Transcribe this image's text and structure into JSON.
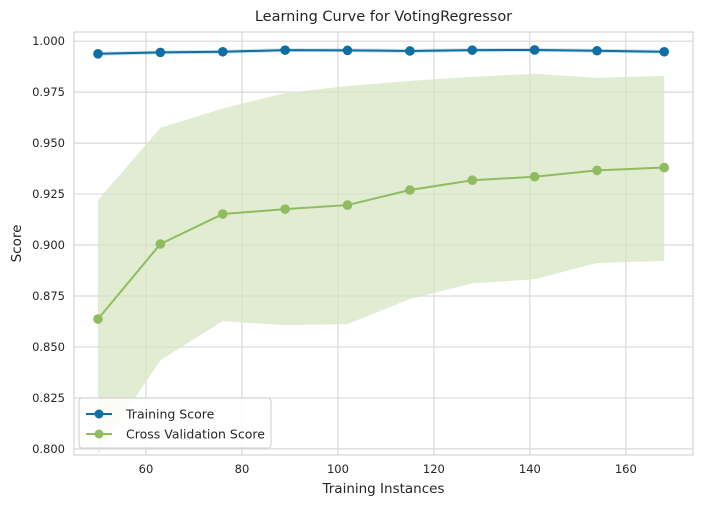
{
  "chart_data": {
    "type": "line",
    "title": "Learning Curve for VotingRegressor",
    "xlabel": "Training Instances",
    "ylabel": "Score",
    "x": [
      50,
      63,
      76,
      89,
      102,
      115,
      128,
      141,
      154,
      168
    ],
    "xlim": [
      45,
      174
    ],
    "ylim": [
      0.797,
      1.0045
    ],
    "xticks": [
      60,
      80,
      100,
      120,
      140,
      160
    ],
    "xtick_labels": [
      "60",
      "80",
      "100",
      "120",
      "140",
      "160"
    ],
    "yticks": [
      0.8,
      0.825,
      0.85,
      0.875,
      0.9,
      0.925,
      0.95,
      0.975,
      1.0
    ],
    "ytick_labels": [
      "0.800",
      "0.825",
      "0.850",
      "0.875",
      "0.900",
      "0.925",
      "0.950",
      "0.975",
      "1.000"
    ],
    "grid": true,
    "legend_position": "lower-left",
    "series": [
      {
        "name": "Training Score",
        "color": "#0e6fa0",
        "values": [
          0.9938,
          0.9945,
          0.9948,
          0.9956,
          0.9955,
          0.9952,
          0.9956,
          0.9957,
          0.9953,
          0.9948
        ],
        "band_upper": [
          0.9948,
          0.9955,
          0.9958,
          0.9966,
          0.9965,
          0.9962,
          0.9966,
          0.9967,
          0.9963,
          0.9958
        ],
        "band_lower": [
          0.9928,
          0.9935,
          0.9938,
          0.9946,
          0.9945,
          0.9942,
          0.9946,
          0.9947,
          0.9943,
          0.9938
        ]
      },
      {
        "name": "Cross Validation Score",
        "color": "#8fbc5f",
        "band_color": "#d7e6c3",
        "values": [
          0.8637,
          0.9005,
          0.9152,
          0.9176,
          0.9196,
          0.927,
          0.9318,
          0.9335,
          0.9366,
          0.938
        ],
        "band_upper": [
          0.922,
          0.9575,
          0.967,
          0.9745,
          0.978,
          0.9805,
          0.9825,
          0.984,
          0.982,
          0.983
        ],
        "band_lower": [
          0.7978,
          0.8435,
          0.8627,
          0.8607,
          0.8612,
          0.8735,
          0.8812,
          0.8832,
          0.8912,
          0.8922
        ]
      }
    ]
  }
}
